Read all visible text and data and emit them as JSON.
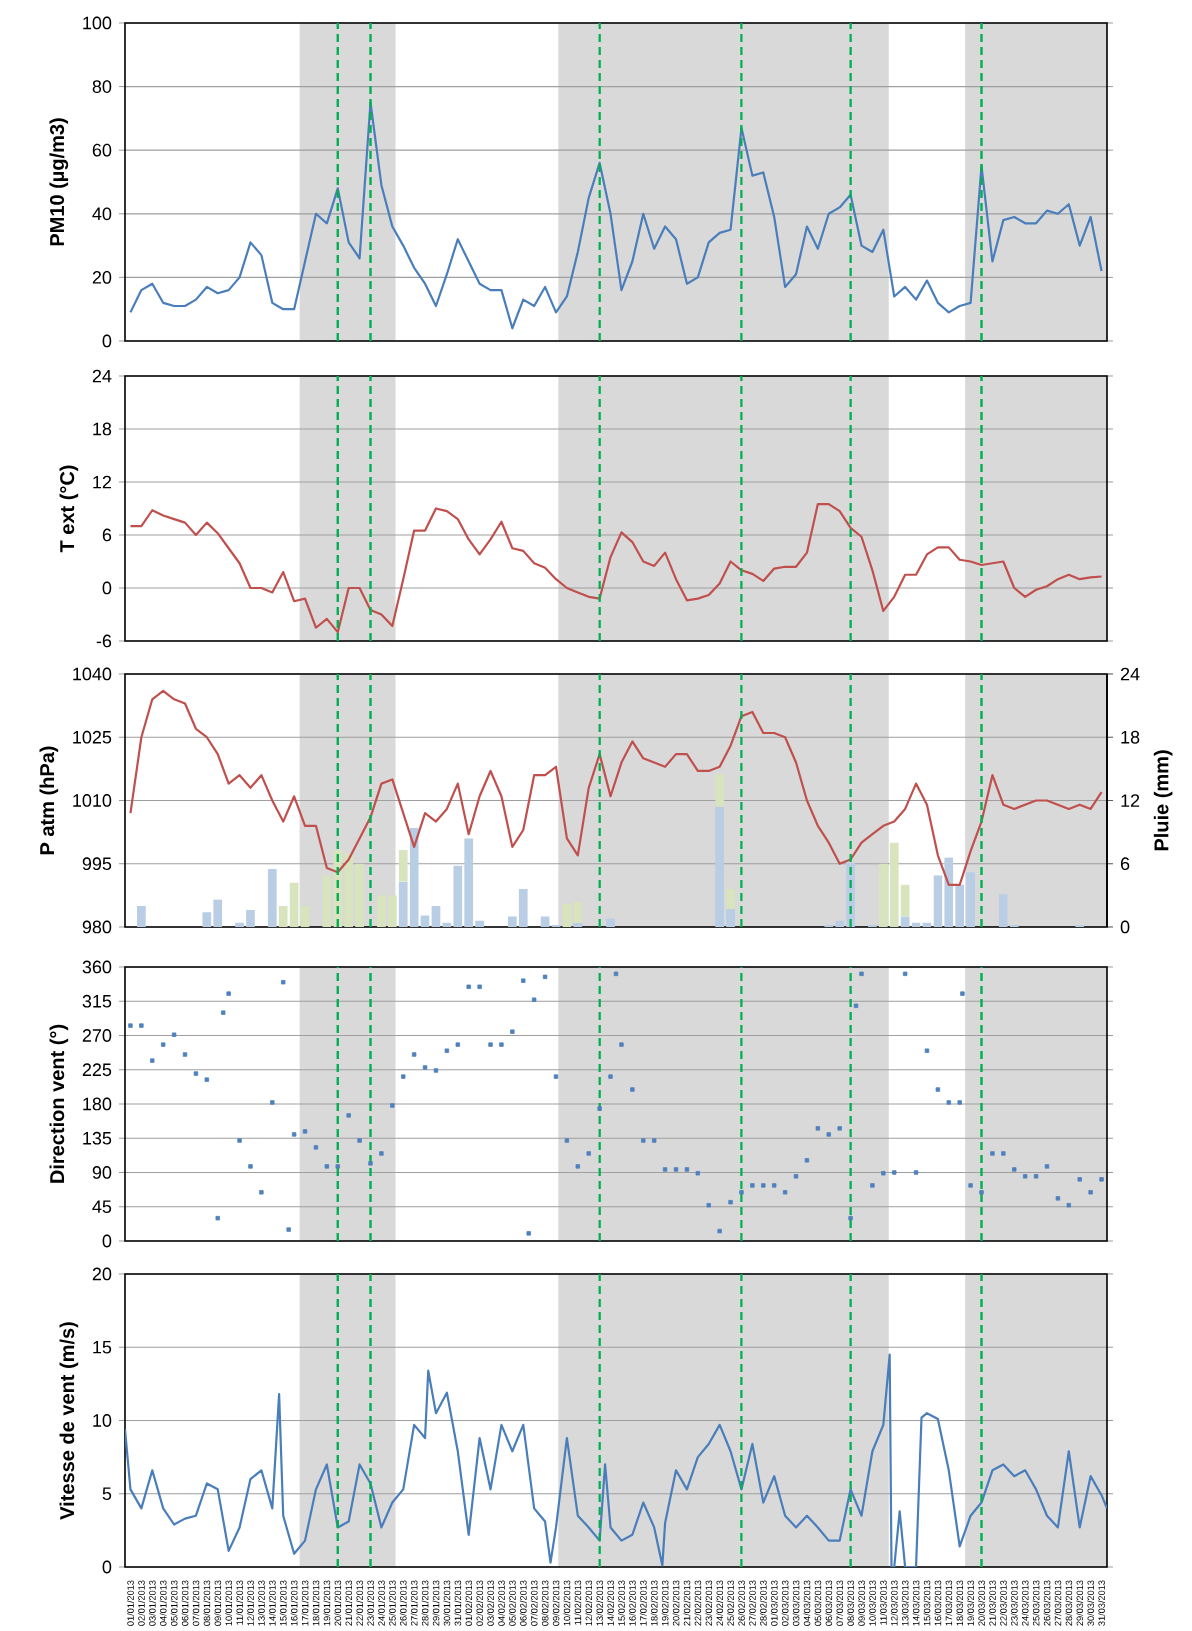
{
  "chart_data": [
    {
      "type": "line",
      "ylabel": "PM10 (µg/m3)",
      "tick_labels": "y",
      "grid": "y",
      "xlim": [
        "2012-12-31T12:00",
        "2013-03-31T12:00"
      ],
      "ylim": [
        0,
        100
      ],
      "yticks": [
        0,
        20,
        40,
        60,
        80,
        100
      ],
      "x": [
        "2013-01-01",
        "2013-01-02",
        "2013-01-03",
        "2013-01-04",
        "2013-01-05",
        "2013-01-06",
        "2013-01-07",
        "2013-01-08",
        "2013-01-09",
        "2013-01-10",
        "2013-01-11",
        "2013-01-12",
        "2013-01-13",
        "2013-01-14",
        "2013-01-15",
        "2013-01-16",
        "2013-01-17",
        "2013-01-18",
        "2013-01-19",
        "2013-01-20",
        "2013-01-21",
        "2013-01-22",
        "2013-01-23",
        "2013-01-24",
        "2013-01-25",
        "2013-01-26",
        "2013-01-27",
        "2013-01-28",
        "2013-01-29",
        "2013-01-30",
        "2013-01-31",
        "2013-02-01",
        "2013-02-02",
        "2013-02-03",
        "2013-02-04",
        "2013-02-05",
        "2013-02-06",
        "2013-02-07",
        "2013-02-08",
        "2013-02-09",
        "2013-02-10",
        "2013-02-11",
        "2013-02-12",
        "2013-02-13",
        "2013-02-14",
        "2013-02-15",
        "2013-02-16",
        "2013-02-17",
        "2013-02-18",
        "2013-02-19",
        "2013-02-20",
        "2013-02-21",
        "2013-02-22",
        "2013-02-23",
        "2013-02-24",
        "2013-02-25",
        "2013-02-26",
        "2013-02-27",
        "2013-02-28",
        "2013-03-01",
        "2013-03-02",
        "2013-03-03",
        "2013-03-04",
        "2013-03-05",
        "2013-03-06",
        "2013-03-07",
        "2013-03-08",
        "2013-03-09",
        "2013-03-10",
        "2013-03-11",
        "2013-03-12",
        "2013-03-13",
        "2013-03-14",
        "2013-03-15",
        "2013-03-16",
        "2013-03-17",
        "2013-03-18",
        "2013-03-19",
        "2013-03-20",
        "2013-03-21",
        "2013-03-22",
        "2013-03-23",
        "2013-03-24",
        "2013-03-25",
        "2013-03-26",
        "2013-03-27",
        "2013-03-28",
        "2013-03-29",
        "2013-03-30",
        "2013-03-31"
      ],
      "series": [
        {
          "color": "#4a7ebb",
          "values": [
            9,
            16,
            18,
            12,
            11,
            11,
            13,
            17,
            15,
            16,
            20,
            31,
            27,
            12,
            10,
            10,
            25,
            40,
            37,
            48,
            31,
            26,
            75,
            49,
            36,
            30,
            23,
            18,
            11,
            21,
            32,
            25,
            18,
            16,
            16,
            4,
            13,
            11,
            17,
            9,
            14,
            28,
            45,
            56,
            40,
            16,
            25,
            40,
            29,
            36,
            32,
            18,
            20,
            31,
            34,
            35,
            67,
            52,
            53,
            39,
            17,
            21,
            36,
            29,
            40,
            42,
            46,
            30,
            28,
            35,
            14,
            17,
            13,
            19,
            12,
            9,
            11,
            12,
            55,
            25,
            38,
            39,
            37,
            37,
            41,
            40,
            43,
            30,
            39,
            22
          ]
        }
      ],
      "bands": [
        {
          "axis": "x",
          "from": "2013-01-16T12:00",
          "to": "2013-01-25T07:00",
          "color": "#d9d9d9"
        },
        {
          "axis": "x",
          "from": "2013-02-09T05:00",
          "to": "2013-03-11T12:00",
          "color": "#d9d9d9"
        },
        {
          "axis": "x",
          "from": "2013-03-18T12:00",
          "to": "2013-03-31T12:00",
          "color": "#d9d9d9"
        }
      ],
      "ref_lines": [
        {
          "axis": "x",
          "value": "2013-01-20",
          "color": "#00b050",
          "line_style": "dashed"
        },
        {
          "axis": "x",
          "value": "2013-01-23",
          "color": "#00b050",
          "line_style": "dashed"
        },
        {
          "axis": "x",
          "value": "2013-02-13",
          "color": "#00b050",
          "line_style": "dashed"
        },
        {
          "axis": "x",
          "value": "2013-02-26",
          "color": "#00b050",
          "line_style": "dashed"
        },
        {
          "axis": "x",
          "value": "2013-03-08",
          "color": "#00b050",
          "line_style": "dashed"
        },
        {
          "axis": "x",
          "value": "2013-03-20",
          "color": "#00b050",
          "line_style": "dashed"
        }
      ]
    },
    {
      "type": "line",
      "ylabel": "T ext (°C)",
      "tick_labels": "y",
      "grid": "y",
      "xlim": [
        "2012-12-31T12:00",
        "2013-03-31T12:00"
      ],
      "ylim": [
        -6,
        24
      ],
      "yticks": [
        -6,
        0,
        6,
        12,
        18,
        24
      ],
      "x": [
        "2013-01-01",
        "2013-01-02",
        "2013-01-03",
        "2013-01-04",
        "2013-01-05",
        "2013-01-06",
        "2013-01-07",
        "2013-01-08",
        "2013-01-09",
        "2013-01-10",
        "2013-01-11",
        "2013-01-12",
        "2013-01-13",
        "2013-01-14",
        "2013-01-15",
        "2013-01-16",
        "2013-01-17",
        "2013-01-18",
        "2013-01-19",
        "2013-01-20",
        "2013-01-21",
        "2013-01-22",
        "2013-01-23",
        "2013-01-24",
        "2013-01-25",
        "2013-01-26",
        "2013-01-27",
        "2013-01-28",
        "2013-01-29",
        "2013-01-30",
        "2013-01-31",
        "2013-02-01",
        "2013-02-02",
        "2013-02-03",
        "2013-02-04",
        "2013-02-05",
        "2013-02-06",
        "2013-02-07",
        "2013-02-08",
        "2013-02-09",
        "2013-02-10",
        "2013-02-11",
        "2013-02-12",
        "2013-02-13",
        "2013-02-14",
        "2013-02-15",
        "2013-02-16",
        "2013-02-17",
        "2013-02-18",
        "2013-02-19",
        "2013-02-20",
        "2013-02-21",
        "2013-02-22",
        "2013-02-23",
        "2013-02-24",
        "2013-02-25",
        "2013-02-26",
        "2013-02-27",
        "2013-02-28",
        "2013-03-01",
        "2013-03-02",
        "2013-03-03",
        "2013-03-04",
        "2013-03-05",
        "2013-03-06",
        "2013-03-07",
        "2013-03-08",
        "2013-03-09",
        "2013-03-10",
        "2013-03-11",
        "2013-03-12",
        "2013-03-13",
        "2013-03-14",
        "2013-03-15",
        "2013-03-16",
        "2013-03-17",
        "2013-03-18",
        "2013-03-19",
        "2013-03-20",
        "2013-03-21",
        "2013-03-22",
        "2013-03-23",
        "2013-03-24",
        "2013-03-25",
        "2013-03-26",
        "2013-03-27",
        "2013-03-28",
        "2013-03-29",
        "2013-03-30",
        "2013-03-31"
      ],
      "series": [
        {
          "color": "#c0504d",
          "values": [
            7,
            7,
            8.8,
            8.2,
            7.8,
            7.4,
            6,
            7.4,
            6.2,
            4.5,
            2.8,
            0,
            0,
            -0.5,
            1.8,
            -1.5,
            -1.2,
            -4.5,
            -3.5,
            -5,
            0,
            0,
            -2.5,
            -3,
            -4.3,
            1,
            6.5,
            6.5,
            9,
            8.7,
            7.8,
            5.5,
            3.8,
            5.5,
            7.5,
            4.5,
            4.2,
            2.8,
            2.3,
            1,
            0,
            -0.5,
            -1,
            -1.2,
            3.5,
            6.3,
            5.2,
            3,
            2.5,
            4,
            1,
            -1.4,
            -1.2,
            -0.8,
            0.5,
            3,
            2,
            1.6,
            0.8,
            2.2,
            2.4,
            2.4,
            4,
            9.5,
            9.5,
            8.7,
            6.8,
            5.8,
            2,
            -2.6,
            -1,
            1.5,
            1.5,
            3.8,
            4.6,
            4.6,
            3.2,
            3,
            2.6,
            2.8,
            3,
            0,
            -1,
            -0.2,
            0.2,
            1,
            1.5,
            1,
            1.2,
            1.3
          ]
        }
      ],
      "bands": [
        {
          "axis": "x",
          "from": "2013-01-16T12:00",
          "to": "2013-01-25T07:00",
          "color": "#d9d9d9"
        },
        {
          "axis": "x",
          "from": "2013-02-09T05:00",
          "to": "2013-03-11T12:00",
          "color": "#d9d9d9"
        },
        {
          "axis": "x",
          "from": "2013-03-18T12:00",
          "to": "2013-03-31T12:00",
          "color": "#d9d9d9"
        }
      ],
      "ref_lines": [
        {
          "axis": "x",
          "value": "2013-01-20",
          "color": "#00b050",
          "line_style": "dashed"
        },
        {
          "axis": "x",
          "value": "2013-01-23",
          "color": "#00b050",
          "line_style": "dashed"
        },
        {
          "axis": "x",
          "value": "2013-02-13",
          "color": "#00b050",
          "line_style": "dashed"
        },
        {
          "axis": "x",
          "value": "2013-02-26",
          "color": "#00b050",
          "line_style": "dashed"
        },
        {
          "axis": "x",
          "value": "2013-03-08",
          "color": "#00b050",
          "line_style": "dashed"
        },
        {
          "axis": "x",
          "value": "2013-03-20",
          "color": "#00b050",
          "line_style": "dashed"
        }
      ]
    },
    {
      "type": "line",
      "ylabel": "P atm (hPa)",
      "y2label": "Pluie (mm)",
      "tick_labels": "y",
      "grid": "y",
      "stacked": true,
      "xlim": [
        "2012-12-31T12:00",
        "2013-03-31T12:00"
      ],
      "ylim": [
        980,
        1040
      ],
      "yticks": [
        980,
        995,
        1010,
        1025,
        1040
      ],
      "y2lim": [
        0,
        24
      ],
      "y2ticks": [
        0,
        6,
        12,
        18,
        24
      ],
      "x": [
        "2013-01-01",
        "2013-01-02",
        "2013-01-03",
        "2013-01-04",
        "2013-01-05",
        "2013-01-06",
        "2013-01-07",
        "2013-01-08",
        "2013-01-09",
        "2013-01-10",
        "2013-01-11",
        "2013-01-12",
        "2013-01-13",
        "2013-01-14",
        "2013-01-15",
        "2013-01-16",
        "2013-01-17",
        "2013-01-18",
        "2013-01-19",
        "2013-01-20",
        "2013-01-21",
        "2013-01-22",
        "2013-01-23",
        "2013-01-24",
        "2013-01-25",
        "2013-01-26",
        "2013-01-27",
        "2013-01-28",
        "2013-01-29",
        "2013-01-30",
        "2013-01-31",
        "2013-02-01",
        "2013-02-02",
        "2013-02-03",
        "2013-02-04",
        "2013-02-05",
        "2013-02-06",
        "2013-02-07",
        "2013-02-08",
        "2013-02-09",
        "2013-02-10",
        "2013-02-11",
        "2013-02-12",
        "2013-02-13",
        "2013-02-14",
        "2013-02-15",
        "2013-02-16",
        "2013-02-17",
        "2013-02-18",
        "2013-02-19",
        "2013-02-20",
        "2013-02-21",
        "2013-02-22",
        "2013-02-23",
        "2013-02-24",
        "2013-02-25",
        "2013-02-26",
        "2013-02-27",
        "2013-02-28",
        "2013-03-01",
        "2013-03-02",
        "2013-03-03",
        "2013-03-04",
        "2013-03-05",
        "2013-03-06",
        "2013-03-07",
        "2013-03-08",
        "2013-03-09",
        "2013-03-10",
        "2013-03-11",
        "2013-03-12",
        "2013-03-13",
        "2013-03-14",
        "2013-03-15",
        "2013-03-16",
        "2013-03-17",
        "2013-03-18",
        "2013-03-19",
        "2013-03-20",
        "2013-03-21",
        "2013-03-22",
        "2013-03-23",
        "2013-03-24",
        "2013-03-25",
        "2013-03-26",
        "2013-03-27",
        "2013-03-28",
        "2013-03-29",
        "2013-03-30",
        "2013-03-31"
      ],
      "series": [
        {
          "type": "bar",
          "axis": "y2",
          "color": "#b9cde5",
          "values": [
            null,
            2.0,
            null,
            null,
            null,
            null,
            null,
            1.4,
            2.6,
            null,
            0.4,
            1.6,
            null,
            5.5,
            null,
            null,
            null,
            null,
            null,
            null,
            null,
            null,
            null,
            null,
            null,
            4.3,
            9.4,
            1.1,
            2.0,
            0.4,
            5.8,
            8.4,
            0.6,
            null,
            null,
            1.0,
            3.6,
            null,
            1.0,
            0.2,
            null,
            0.4,
            null,
            null,
            0.8,
            null,
            null,
            null,
            null,
            null,
            null,
            null,
            null,
            null,
            11.4,
            1.7,
            null,
            null,
            null,
            null,
            null,
            null,
            null,
            null,
            0.2,
            0.6,
            6.1,
            null,
            0.2,
            null,
            null,
            1.0,
            0.4,
            0.4,
            4.9,
            6.6,
            4.0,
            5.2,
            null,
            null,
            3.1,
            0.2,
            null,
            null,
            null,
            null,
            null,
            0.2,
            null,
            null
          ]
        },
        {
          "type": "bar",
          "axis": "y2",
          "color": "#d7e4bd",
          "values": [
            null,
            null,
            null,
            null,
            null,
            null,
            null,
            null,
            null,
            null,
            null,
            null,
            null,
            null,
            2.0,
            4.2,
            2.0,
            null,
            4.9,
            7.3,
            7.0,
            6.0,
            null,
            3.0,
            3.0,
            3.0,
            null,
            null,
            null,
            null,
            null,
            null,
            null,
            null,
            null,
            null,
            null,
            null,
            null,
            null,
            2.2,
            2.0,
            null,
            null,
            null,
            null,
            null,
            null,
            null,
            null,
            null,
            null,
            null,
            null,
            3.1,
            1.9,
            null,
            null,
            null,
            null,
            null,
            null,
            null,
            null,
            null,
            null,
            null,
            null,
            null,
            6.0,
            8.0,
            3.0,
            null,
            null,
            null,
            null,
            null,
            null,
            null,
            null,
            null,
            null,
            null,
            null,
            null,
            null,
            null,
            null,
            null,
            null
          ]
        },
        {
          "color": "#c0504d",
          "values": [
            1007,
            1025,
            1034,
            1036,
            1034,
            1033,
            1027,
            1025,
            1021,
            1014,
            1016,
            1013,
            1016,
            1010,
            1005,
            1011,
            1004,
            1004,
            994,
            993,
            996,
            1001,
            1006,
            1014,
            1015,
            1007,
            999,
            1007,
            1005,
            1008,
            1014,
            1002,
            1011,
            1017,
            1011,
            999,
            1003,
            1016,
            1016,
            1018,
            1001,
            997,
            1013,
            1021,
            1011,
            1019,
            1024,
            1020,
            1019,
            1018,
            1021,
            1021,
            1017,
            1017,
            1018,
            1023,
            1030,
            1031,
            1026,
            1026,
            1025,
            1019,
            1010,
            1004,
            1000,
            995,
            996,
            1000,
            1002,
            1004,
            1005,
            1008,
            1014,
            1009,
            997,
            990,
            990,
            998,
            1005,
            1016,
            1009,
            1008,
            1009,
            1010,
            1010,
            1009,
            1008,
            1009,
            1008,
            1012
          ]
        }
      ],
      "bands": [
        {
          "axis": "x",
          "from": "2013-01-16T12:00",
          "to": "2013-01-25T07:00",
          "color": "#d9d9d9"
        },
        {
          "axis": "x",
          "from": "2013-02-09T05:00",
          "to": "2013-03-11T12:00",
          "color": "#d9d9d9"
        },
        {
          "axis": "x",
          "from": "2013-03-18T12:00",
          "to": "2013-03-31T12:00",
          "color": "#d9d9d9"
        }
      ],
      "ref_lines": [
        {
          "axis": "x",
          "value": "2013-01-20",
          "color": "#00b050",
          "line_style": "dashed"
        },
        {
          "axis": "x",
          "value": "2013-01-23",
          "color": "#00b050",
          "line_style": "dashed"
        },
        {
          "axis": "x",
          "value": "2013-02-13",
          "color": "#00b050",
          "line_style": "dashed"
        },
        {
          "axis": "x",
          "value": "2013-02-26",
          "color": "#00b050",
          "line_style": "dashed"
        },
        {
          "axis": "x",
          "value": "2013-03-08",
          "color": "#00b050",
          "line_style": "dashed"
        },
        {
          "axis": "x",
          "value": "2013-03-20",
          "color": "#00b050",
          "line_style": "dashed"
        }
      ]
    },
    {
      "type": "scatter",
      "ylabel": "Direction vent (°)",
      "tick_labels": "y",
      "grid": "y",
      "marker": "square",
      "xlim": [
        "2012-12-31T12:00",
        "2013-03-31T12:00"
      ],
      "ylim": [
        0,
        360
      ],
      "yticks": [
        0,
        45,
        90,
        135,
        180,
        225,
        270,
        315,
        360
      ],
      "x": [
        "2013-01-01",
        "2013-01-02",
        "2013-01-03",
        "2013-01-04",
        "2013-01-05",
        "2013-01-06",
        "2013-01-07",
        "2013-01-08",
        "2013-01-09",
        "2013-01-09T12:00",
        "2013-01-10",
        "2013-01-11",
        "2013-01-12",
        "2013-01-13",
        "2013-01-14",
        "2013-01-15",
        "2013-01-15T12:00",
        "2013-01-16",
        "2013-01-17",
        "2013-01-18",
        "2013-01-19",
        "2013-01-20",
        "2013-01-21",
        "2013-01-22",
        "2013-01-23",
        "2013-01-24",
        "2013-01-25",
        "2013-01-26",
        "2013-01-27",
        "2013-01-28",
        "2013-01-29",
        "2013-01-30",
        "2013-01-31",
        "2013-02-01",
        "2013-02-02",
        "2013-02-03",
        "2013-02-04",
        "2013-02-05",
        "2013-02-06",
        "2013-02-06T12:00",
        "2013-02-07",
        "2013-02-08",
        "2013-02-09",
        "2013-02-10",
        "2013-02-11",
        "2013-02-12",
        "2013-02-13",
        "2013-02-14",
        "2013-02-14T12:00",
        "2013-02-15",
        "2013-02-16",
        "2013-02-17",
        "2013-02-18",
        "2013-02-19",
        "2013-02-20",
        "2013-02-21",
        "2013-02-22",
        "2013-02-23",
        "2013-02-24",
        "2013-02-25",
        "2013-02-26",
        "2013-02-27",
        "2013-02-28",
        "2013-03-01",
        "2013-03-02",
        "2013-03-03",
        "2013-03-04",
        "2013-03-05",
        "2013-03-06",
        "2013-03-07",
        "2013-03-08",
        "2013-03-08T12:00",
        "2013-03-09",
        "2013-03-10",
        "2013-03-11",
        "2013-03-12",
        "2013-03-13",
        "2013-03-14",
        "2013-03-15",
        "2013-03-16",
        "2013-03-17",
        "2013-03-18",
        "2013-03-18T06:00",
        "2013-03-19",
        "2013-03-20",
        "2013-03-21",
        "2013-03-22",
        "2013-03-23",
        "2013-03-24",
        "2013-03-25",
        "2013-03-26",
        "2013-03-27",
        "2013-03-28",
        "2013-03-29",
        "2013-03-30",
        "2013-03-31"
      ],
      "series": [
        {
          "color": "#4f81bd",
          "values": [
            283,
            283,
            237,
            258,
            271,
            245,
            220,
            212,
            30,
            300,
            325,
            132,
            98,
            64,
            182,
            340,
            15,
            140,
            144,
            123,
            98,
            98,
            165,
            132,
            102,
            115,
            178,
            216,
            245,
            228,
            224,
            250,
            258,
            334,
            334,
            258,
            258,
            275,
            342,
            10,
            317,
            347,
            216,
            132,
            98,
            115,
            174,
            216,
            351,
            258,
            199,
            132,
            132,
            94,
            94,
            94,
            89,
            47,
            13,
            51,
            64,
            73,
            73,
            73,
            64,
            85,
            106,
            148,
            140,
            148,
            30,
            309,
            351,
            73,
            89,
            90,
            351,
            90,
            250,
            199,
            182,
            182,
            325,
            73,
            64,
            115,
            115,
            94,
            85,
            85,
            98,
            56,
            47,
            81,
            64,
            81
          ]
        }
      ],
      "bands": [
        {
          "axis": "x",
          "from": "2013-01-16T12:00",
          "to": "2013-01-25T07:00",
          "color": "#d9d9d9"
        },
        {
          "axis": "x",
          "from": "2013-02-09T05:00",
          "to": "2013-03-11T12:00",
          "color": "#d9d9d9"
        },
        {
          "axis": "x",
          "from": "2013-03-18T12:00",
          "to": "2013-03-31T12:00",
          "color": "#d9d9d9"
        }
      ],
      "ref_lines": [
        {
          "axis": "x",
          "value": "2013-01-20",
          "color": "#00b050",
          "line_style": "dashed"
        },
        {
          "axis": "x",
          "value": "2013-01-23",
          "color": "#00b050",
          "line_style": "dashed"
        },
        {
          "axis": "x",
          "value": "2013-02-13",
          "color": "#00b050",
          "line_style": "dashed"
        },
        {
          "axis": "x",
          "value": "2013-02-26",
          "color": "#00b050",
          "line_style": "dashed"
        },
        {
          "axis": "x",
          "value": "2013-03-08",
          "color": "#00b050",
          "line_style": "dashed"
        },
        {
          "axis": "x",
          "value": "2013-03-20",
          "color": "#00b050",
          "line_style": "dashed"
        }
      ]
    },
    {
      "type": "line",
      "ylabel": "Vitesse de vent (m/s)",
      "grid": "y",
      "xlim": [
        "2012-12-31T12:00",
        "2013-03-31T12:00"
      ],
      "ylim": [
        0,
        20
      ],
      "yticks": [
        0,
        5,
        10,
        15,
        20
      ],
      "xticks": [
        {
          "value": "2013-01-01",
          "label": "01/01/2013"
        },
        {
          "value": "2013-01-02",
          "label": "02/01/2013"
        },
        {
          "value": "2013-01-03",
          "label": "03/01/2013"
        },
        {
          "value": "2013-01-04",
          "label": "04/01/2013"
        },
        {
          "value": "2013-01-05",
          "label": "05/01/2013"
        },
        {
          "value": "2013-01-06",
          "label": "06/01/2013"
        },
        {
          "value": "2013-01-07",
          "label": "07/01/2013"
        },
        {
          "value": "2013-01-08",
          "label": "08/01/2013"
        },
        {
          "value": "2013-01-09",
          "label": "09/01/2013"
        },
        {
          "value": "2013-01-10",
          "label": "10/01/2013"
        },
        {
          "value": "2013-01-11",
          "label": "11/01/2013"
        },
        {
          "value": "2013-01-12",
          "label": "12/01/2013"
        },
        {
          "value": "2013-01-13",
          "label": "13/01/2013"
        },
        {
          "value": "2013-01-14",
          "label": "14/01/2013"
        },
        {
          "value": "2013-01-15",
          "label": "15/01/2013"
        },
        {
          "value": "2013-01-16",
          "label": "16/01/2013"
        },
        {
          "value": "2013-01-17",
          "label": "17/01/2013"
        },
        {
          "value": "2013-01-18",
          "label": "18/01/2013"
        },
        {
          "value": "2013-01-19",
          "label": "19/01/2013"
        },
        {
          "value": "2013-01-20",
          "label": "20/01/2013"
        },
        {
          "value": "2013-01-21",
          "label": "21/01/2013"
        },
        {
          "value": "2013-01-22",
          "label": "22/01/2013"
        },
        {
          "value": "2013-01-23",
          "label": "23/01/2013"
        },
        {
          "value": "2013-01-24",
          "label": "24/01/2013"
        },
        {
          "value": "2013-01-25",
          "label": "25/01/2013"
        },
        {
          "value": "2013-01-26",
          "label": "26/01/2013"
        },
        {
          "value": "2013-01-27",
          "label": "27/01/2013"
        },
        {
          "value": "2013-01-28",
          "label": "28/01/2013"
        },
        {
          "value": "2013-01-29",
          "label": "29/01/2013"
        },
        {
          "value": "2013-01-30",
          "label": "30/01/2013"
        },
        {
          "value": "2013-01-31",
          "label": "31/01/2013"
        },
        {
          "value": "2013-02-01",
          "label": "01/02/2013"
        },
        {
          "value": "2013-02-02",
          "label": "02/02/2013"
        },
        {
          "value": "2013-02-03",
          "label": "03/02/2013"
        },
        {
          "value": "2013-02-04",
          "label": "04/02/2013"
        },
        {
          "value": "2013-02-05",
          "label": "05/02/2013"
        },
        {
          "value": "2013-02-06",
          "label": "06/02/2013"
        },
        {
          "value": "2013-02-07",
          "label": "07/02/2013"
        },
        {
          "value": "2013-02-08",
          "label": "08/02/2013"
        },
        {
          "value": "2013-02-09",
          "label": "09/02/2013"
        },
        {
          "value": "2013-02-10",
          "label": "10/02/2013"
        },
        {
          "value": "2013-02-11",
          "label": "11/02/2013"
        },
        {
          "value": "2013-02-12",
          "label": "12/02/2013"
        },
        {
          "value": "2013-02-13",
          "label": "13/02/2013"
        },
        {
          "value": "2013-02-14",
          "label": "14/02/2013"
        },
        {
          "value": "2013-02-15",
          "label": "15/02/2013"
        },
        {
          "value": "2013-02-16",
          "label": "16/02/2013"
        },
        {
          "value": "2013-02-17",
          "label": "17/02/2013"
        },
        {
          "value": "2013-02-18",
          "label": "18/02/2013"
        },
        {
          "value": "2013-02-19",
          "label": "19/02/2013"
        },
        {
          "value": "2013-02-20",
          "label": "20/02/2013"
        },
        {
          "value": "2013-02-21",
          "label": "21/02/2013"
        },
        {
          "value": "2013-02-22",
          "label": "22/02/2013"
        },
        {
          "value": "2013-02-23",
          "label": "23/02/2013"
        },
        {
          "value": "2013-02-24",
          "label": "24/02/2013"
        },
        {
          "value": "2013-02-25",
          "label": "25/02/2013"
        },
        {
          "value": "2013-02-26",
          "label": "26/02/2013"
        },
        {
          "value": "2013-02-27",
          "label": "27/02/2013"
        },
        {
          "value": "2013-02-28",
          "label": "28/02/2013"
        },
        {
          "value": "2013-03-01",
          "label": "01/03/2013"
        },
        {
          "value": "2013-03-02",
          "label": "02/03/2013"
        },
        {
          "value": "2013-03-03",
          "label": "03/03/2013"
        },
        {
          "value": "2013-03-04",
          "label": "04/03/2013"
        },
        {
          "value": "2013-03-05",
          "label": "05/03/2013"
        },
        {
          "value": "2013-03-06",
          "label": "06/03/2013"
        },
        {
          "value": "2013-03-07",
          "label": "07/03/2013"
        },
        {
          "value": "2013-03-08",
          "label": "08/03/2013"
        },
        {
          "value": "2013-03-09",
          "label": "09/03/2013"
        },
        {
          "value": "2013-03-10",
          "label": "10/03/2013"
        },
        {
          "value": "2013-03-11",
          "label": "11/03/2013"
        },
        {
          "value": "2013-03-12",
          "label": "12/03/2013"
        },
        {
          "value": "2013-03-13",
          "label": "13/03/2013"
        },
        {
          "value": "2013-03-14",
          "label": "14/03/2013"
        },
        {
          "value": "2013-03-15",
          "label": "15/03/2013"
        },
        {
          "value": "2013-03-16",
          "label": "16/03/2013"
        },
        {
          "value": "2013-03-17",
          "label": "17/03/2013"
        },
        {
          "value": "2013-03-18",
          "label": "18/03/2013"
        },
        {
          "value": "2013-03-19",
          "label": "19/03/2013"
        },
        {
          "value": "2013-03-20",
          "label": "20/03/2013"
        },
        {
          "value": "2013-03-21",
          "label": "21/03/2013"
        },
        {
          "value": "2013-03-22",
          "label": "22/03/2013"
        },
        {
          "value": "2013-03-23",
          "label": "23/03/2013"
        },
        {
          "value": "2013-03-24",
          "label": "24/03/2013"
        },
        {
          "value": "2013-03-25",
          "label": "25/03/2013"
        },
        {
          "value": "2013-03-26",
          "label": "26/03/2013"
        },
        {
          "value": "2013-03-27",
          "label": "27/03/2013"
        },
        {
          "value": "2013-03-28",
          "label": "28/03/2013"
        },
        {
          "value": "2013-03-29",
          "label": "29/03/2013"
        },
        {
          "value": "2013-03-30",
          "label": "30/03/2013"
        },
        {
          "value": "2013-03-31",
          "label": "31/03/2013"
        }
      ],
      "x": [
        "2012-12-31T12:00",
        "2013-01-01",
        "2013-01-02",
        "2013-01-03",
        "2013-01-04",
        "2013-01-05",
        "2013-01-06",
        "2013-01-07",
        "2013-01-08",
        "2013-01-09",
        "2013-01-10",
        "2013-01-11",
        "2013-01-12",
        "2013-01-13",
        "2013-01-14",
        "2013-01-14T15:00",
        "2013-01-15",
        "2013-01-16",
        "2013-01-17",
        "2013-01-18",
        "2013-01-19",
        "2013-01-20",
        "2013-01-21",
        "2013-01-22",
        "2013-01-23",
        "2013-01-24",
        "2013-01-25",
        "2013-01-26",
        "2013-01-27",
        "2013-01-28",
        "2013-01-28T07:00",
        "2013-01-29",
        "2013-01-30",
        "2013-01-31",
        "2013-02-01",
        "2013-02-02",
        "2013-02-03",
        "2013-02-04",
        "2013-02-05",
        "2013-02-06",
        "2013-02-07",
        "2013-02-08",
        "2013-02-08T12:00",
        "2013-02-09",
        "2013-02-10",
        "2013-02-11",
        "2013-02-12",
        "2013-02-13",
        "2013-02-13T12:00",
        "2013-02-14",
        "2013-02-15",
        "2013-02-16",
        "2013-02-17",
        "2013-02-18",
        "2013-02-18T18:00",
        "2013-02-19",
        "2013-02-20",
        "2013-02-21",
        "2013-02-22",
        "2013-02-23",
        "2013-02-24",
        "2013-02-25",
        "2013-02-26",
        "2013-02-27",
        "2013-02-28",
        "2013-03-01",
        "2013-03-02",
        "2013-03-03",
        "2013-03-04",
        "2013-03-05",
        "2013-03-06",
        "2013-03-07",
        "2013-03-08",
        "2013-03-09",
        "2013-03-10",
        "2013-03-11",
        "2013-03-11T14:00",
        "2013-03-11T18:00",
        "2013-03-12",
        "2013-03-12T12:00",
        "2013-03-13",
        "2013-03-14",
        "2013-03-14T12:00",
        "2013-03-15",
        "2013-03-16",
        "2013-03-17",
        "2013-03-18",
        "2013-03-19",
        "2013-03-20",
        "2013-03-21",
        "2013-03-22",
        "2013-03-23",
        "2013-03-24",
        "2013-03-25",
        "2013-03-26",
        "2013-03-27",
        "2013-03-28",
        "2013-03-29",
        "2013-03-30",
        "2013-03-31",
        "2013-03-31T12:00"
      ],
      "series": [
        {
          "color": "#4a7ebb",
          "values": [
            9.4,
            5.3,
            4.0,
            6.6,
            4.0,
            2.9,
            3.3,
            3.5,
            5.7,
            5.3,
            1.1,
            2.7,
            6.0,
            6.6,
            4.0,
            11.8,
            3.5,
            0.9,
            1.8,
            5.3,
            7.0,
            2.7,
            3.1,
            7.0,
            5.7,
            2.7,
            4.4,
            5.3,
            9.7,
            8.8,
            13.4,
            10.5,
            11.9,
            7.9,
            2.2,
            8.8,
            5.3,
            9.7,
            7.9,
            9.7,
            4.0,
            3.1,
            0.3,
            2.7,
            8.8,
            3.5,
            2.7,
            1.8,
            7.0,
            2.7,
            1.8,
            2.2,
            4.4,
            2.7,
            0.1,
            3.0,
            6.6,
            5.3,
            7.5,
            8.4,
            9.7,
            7.9,
            5.3,
            8.4,
            4.4,
            6.2,
            3.5,
            2.7,
            3.5,
            2.7,
            1.8,
            1.8,
            5.3,
            3.5,
            7.9,
            9.7,
            14.5,
            0,
            0,
            3.8,
            0,
            0,
            10.2,
            10.5,
            10.1,
            6.6,
            1.4,
            3.5,
            4.4,
            6.6,
            7.0,
            6.2,
            6.6,
            5.3,
            3.5,
            2.7,
            7.9,
            2.7,
            6.2,
            4.9,
            4.0
          ]
        }
      ],
      "bands": [
        {
          "axis": "x",
          "from": "2013-01-16T12:00",
          "to": "2013-01-25T07:00",
          "color": "#d9d9d9"
        },
        {
          "axis": "x",
          "from": "2013-02-09T05:00",
          "to": "2013-03-11T12:00",
          "color": "#d9d9d9"
        },
        {
          "axis": "x",
          "from": "2013-03-18T12:00",
          "to": "2013-03-31T12:00",
          "color": "#d9d9d9"
        }
      ],
      "ref_lines": [
        {
          "axis": "x",
          "value": "2013-01-20",
          "color": "#00b050",
          "line_style": "dashed"
        },
        {
          "axis": "x",
          "value": "2013-01-23",
          "color": "#00b050",
          "line_style": "dashed"
        },
        {
          "axis": "x",
          "value": "2013-02-13",
          "color": "#00b050",
          "line_style": "dashed"
        },
        {
          "axis": "x",
          "value": "2013-02-26",
          "color": "#00b050",
          "line_style": "dashed"
        },
        {
          "axis": "x",
          "value": "2013-03-08",
          "color": "#00b050",
          "line_style": "dashed"
        },
        {
          "axis": "x",
          "value": "2013-03-20",
          "color": "#00b050",
          "line_style": "dashed"
        }
      ]
    }
  ]
}
